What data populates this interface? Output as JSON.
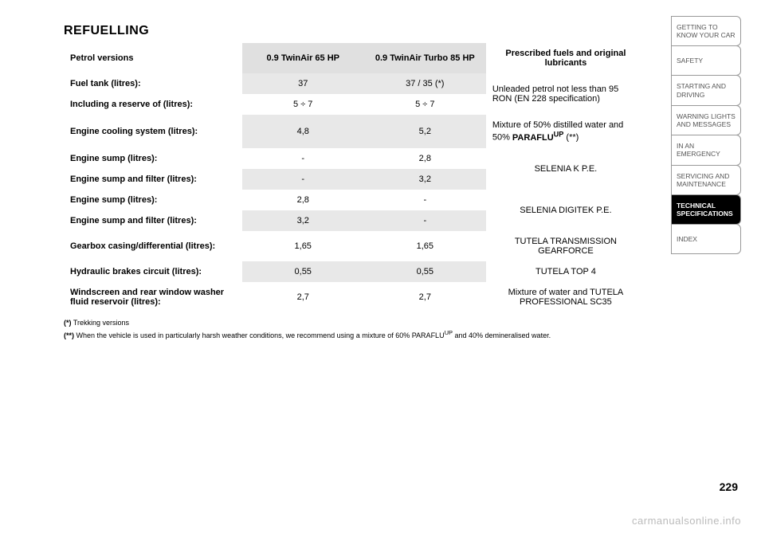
{
  "heading": "REFUELLING",
  "table": {
    "headers": {
      "petrol_versions": "Petrol versions",
      "col1": "0.9 TwinAir 65 HP",
      "col2": "0.9 TwinAir Turbo 85 HP",
      "col3": "Prescribed fuels and original lubricants"
    },
    "rows": [
      {
        "label": "Fuel tank (litres):",
        "c1": "37",
        "c2": "37 / 35 (*)",
        "rec": "Unleaded petrol not less than 95 RON (EN 228 specification)",
        "rec_rowspan": 2
      },
      {
        "label": "Including a reserve of (litres):",
        "c1": "5 ÷ 7",
        "c2": "5 ÷ 7"
      },
      {
        "label": "Engine cooling system (litres):",
        "c1": "4,8",
        "c2": "5,2",
        "rec_html": "Mixture of 50% distilled water and 50% <b>PARAFLU<sup>UP</sup></b> (**)"
      },
      {
        "label": "Engine sump (litres):",
        "c1": "-",
        "c2": "2,8",
        "rec": "SELENIA K P.E.",
        "rec_rowspan": 2,
        "rec_center": true
      },
      {
        "label": "Engine sump and filter (litres):",
        "c1": "-",
        "c2": "3,2"
      },
      {
        "label": "Engine sump (litres):",
        "c1": "2,8",
        "c2": "-",
        "rec": "SELENIA DIGITEK P.E.",
        "rec_rowspan": 2,
        "rec_center": true
      },
      {
        "label": "Engine sump and filter (litres):",
        "c1": "3,2",
        "c2": "-"
      },
      {
        "label": "Gearbox casing/differential (litres):",
        "c1": "1,65",
        "c2": "1,65",
        "rec": "TUTELA TRANSMISSION GEARFORCE",
        "rec_center": true
      },
      {
        "label": "Hydraulic brakes circuit (litres):",
        "c1": "0,55",
        "c2": "0,55",
        "rec": "TUTELA TOP 4",
        "rec_center": true
      },
      {
        "label": "Windscreen and rear window washer fluid reservoir (litres):",
        "c1": "2,7",
        "c2": "2,7",
        "rec": "Mixture of water and TUTELA PROFESSIONAL SC35",
        "rec_center": true
      }
    ]
  },
  "footnotes": {
    "f1_marker": "(*)",
    "f1_text": "Trekking versions",
    "f2_marker": "(**)",
    "f2_text_html": "When the vehicle is used in particularly harsh weather conditions, we recommend using a mixture of 60% PARAFLU<sup>UP</sup> and 40% demineralised water."
  },
  "tabs": [
    {
      "label": "GETTING TO KNOW YOUR CAR"
    },
    {
      "label": "SAFETY"
    },
    {
      "label": "STARTING AND DRIVING"
    },
    {
      "label": "WARNING LIGHTS AND MESSAGES"
    },
    {
      "label": "IN AN EMERGENCY"
    },
    {
      "label": "SERVICING AND MAINTENANCE"
    },
    {
      "label": "TECHNICAL SPECIFICATIONS",
      "active": true
    },
    {
      "label": "INDEX"
    }
  ],
  "page_number": "229",
  "watermark": "carmanualsonline.info",
  "colors": {
    "grey_fill": "#e8e8e8",
    "header_fill": "#e0e0e0",
    "tab_border": "#999999",
    "tab_text": "#555555",
    "watermark": "#bbbbbb"
  }
}
